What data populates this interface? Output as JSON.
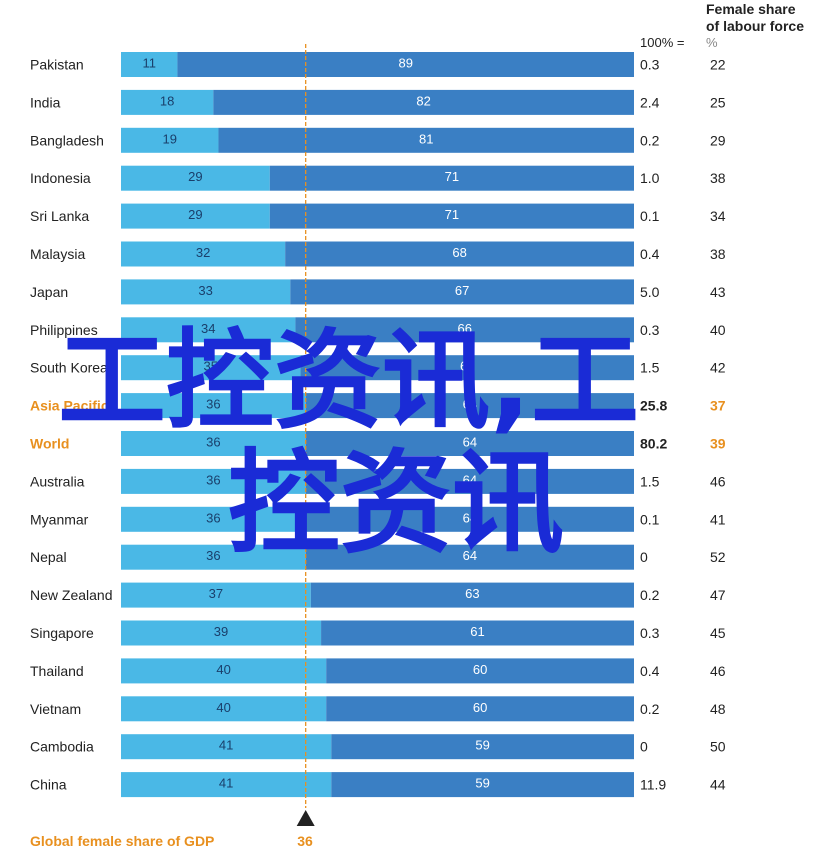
{
  "header": {
    "top_fragment": "",
    "female_share_title_line1": "Female share",
    "female_share_title_line2": "of labour force",
    "col_100": "100% =",
    "pct": "%"
  },
  "footer": {
    "label": "Global female share of GDP",
    "value": "36"
  },
  "watermark": {
    "line1": "工控资讯,工",
    "line2": "控资讯",
    "color": "#1a2bd6"
  },
  "colors": {
    "light_bar": "#4ab8e6",
    "dark_bar": "#3a7fc4",
    "highlight": "#e8901f",
    "marker_line": "#e8901f",
    "marker": "#222222"
  },
  "chart_data": {
    "type": "bar",
    "orientation": "horizontal-stacked-100",
    "reference_value": 36,
    "categories": [
      "Pakistan",
      "India",
      "Bangladesh",
      "Indonesia",
      "Sri Lanka",
      "Malaysia",
      "Japan",
      "Philippines",
      "South Korea",
      "Asia Pacific",
      "World",
      "Australia",
      "Myanmar",
      "Nepal",
      "New Zealand",
      "Singapore",
      "Thailand",
      "Vietnam",
      "Cambodia",
      "China"
    ],
    "highlighted": [
      "Asia Pacific",
      "World"
    ],
    "series": [
      {
        "values": [
          11,
          18,
          19,
          29,
          29,
          32,
          33,
          34,
          35,
          36,
          36,
          36,
          36,
          36,
          37,
          39,
          40,
          40,
          41,
          41
        ]
      },
      {
        "values": [
          89,
          82,
          81,
          71,
          71,
          68,
          67,
          66,
          65,
          64,
          64,
          64,
          64,
          64,
          63,
          61,
          60,
          60,
          59,
          59
        ]
      }
    ],
    "gdp_100pct": [
      "0.3",
      "2.4",
      "0.2",
      "1.0",
      "0.1",
      "0.4",
      "5.0",
      "0.3",
      "1.5",
      "25.8",
      "80.2",
      "1.5",
      "0.1",
      "0",
      "0.2",
      "0.3",
      "0.4",
      "0.2",
      "0",
      "11.9"
    ],
    "female_labour_share": [
      "22",
      "25",
      "29",
      "38",
      "34",
      "38",
      "43",
      "40",
      "42",
      "37",
      "39",
      "46",
      "41",
      "52",
      "47",
      "45",
      "46",
      "48",
      "50",
      "44"
    ]
  }
}
